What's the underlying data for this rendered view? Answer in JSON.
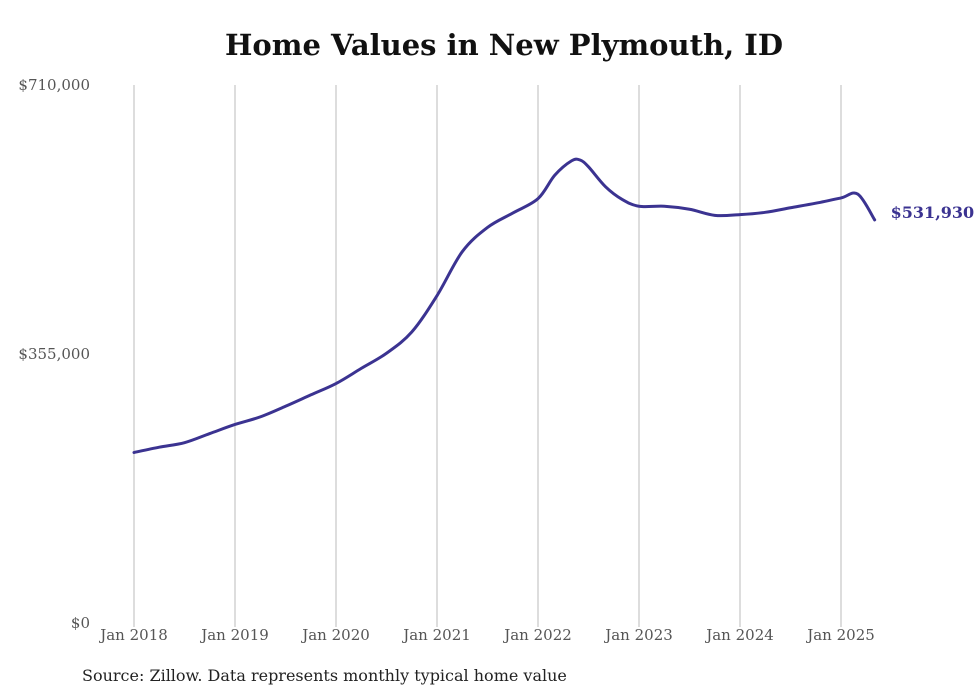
{
  "title": "Home Values in New Plymouth, ID",
  "source": "Source: Zillow. Data represents monthly typical home value",
  "colors": {
    "line": "#3b3391",
    "grid": "#bbbbbb",
    "text": "#555555"
  },
  "chart_data": {
    "type": "line",
    "title": "Home Values in New Plymouth, ID",
    "xlabel": "",
    "ylabel": "",
    "ylim": [
      0,
      710000
    ],
    "xlim": [
      "2018-01",
      "2025-05"
    ],
    "grid": "vertical",
    "y_ticks": [
      "$0",
      "$355,000",
      "$710,000"
    ],
    "y_tick_values": [
      0,
      355000,
      710000
    ],
    "x_ticks": [
      "Jan 2018",
      "Jan 2019",
      "Jan 2020",
      "Jan 2021",
      "Jan 2022",
      "Jan 2023",
      "Jan 2024",
      "Jan 2025"
    ],
    "x_tick_dates": [
      "2018-01",
      "2019-01",
      "2020-01",
      "2021-01",
      "2022-01",
      "2023-01",
      "2024-01",
      "2025-01"
    ],
    "end_label": "$531,930",
    "series": [
      {
        "x": [
          "2018-01",
          "2018-04",
          "2018-07",
          "2018-10",
          "2019-01",
          "2019-04",
          "2019-07",
          "2019-10",
          "2020-01",
          "2020-04",
          "2020-07",
          "2020-10",
          "2021-01",
          "2021-04",
          "2021-07",
          "2021-10",
          "2022-01",
          "2022-03",
          "2022-05",
          "2022-06",
          "2022-07",
          "2022-09",
          "2022-11",
          "2023-01",
          "2023-04",
          "2023-07",
          "2023-10",
          "2024-01",
          "2024-04",
          "2024-07",
          "2024-10",
          "2025-01",
          "2025-03",
          "2025-05"
        ],
        "values": [
          225000,
          232000,
          238000,
          250000,
          262000,
          272000,
          286000,
          301000,
          316000,
          336000,
          356000,
          384000,
          432000,
          490000,
          522000,
          541000,
          560000,
          591000,
          610000,
          611000,
          602000,
          576000,
          559000,
          550000,
          550000,
          546000,
          538000,
          539000,
          542000,
          548000,
          554000,
          561000,
          566000,
          532000
        ]
      }
    ]
  }
}
